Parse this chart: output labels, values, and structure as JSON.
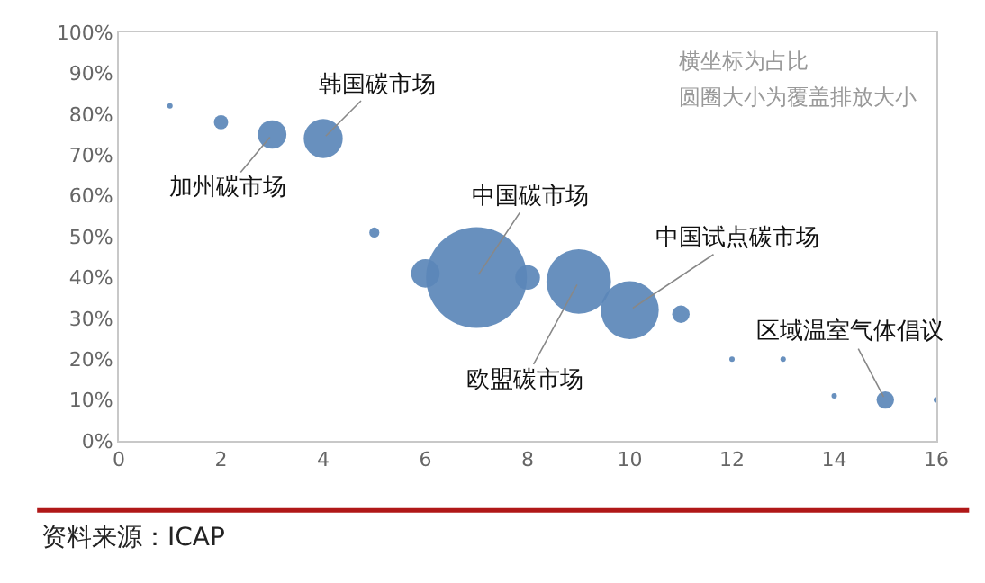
{
  "chart_data": {
    "type": "bubble",
    "x": [
      1,
      2,
      3,
      4,
      5,
      6,
      7,
      8,
      9,
      10,
      11,
      12,
      13,
      14,
      15,
      16
    ],
    "values": [
      82,
      78,
      75,
      74,
      51,
      41,
      40,
      40,
      39,
      32,
      31,
      20,
      20,
      11,
      10,
      10
    ],
    "sizes": [
      0.002,
      0.02,
      0.08,
      0.15,
      0.01,
      0.08,
      1,
      0.06,
      0.41,
      0.33,
      0.03,
      0.002,
      0.002,
      0.002,
      0.03,
      0.002
    ],
    "color": "#5b87b8",
    "xlim": [
      0,
      16
    ],
    "xticks": [
      0,
      2,
      4,
      6,
      8,
      10,
      12,
      14,
      16
    ],
    "ylim": [
      0,
      100
    ],
    "yticks": [
      {
        "value": 0,
        "label": "0%"
      },
      {
        "value": 10,
        "label": "10%"
      },
      {
        "value": 20,
        "label": "20%"
      },
      {
        "value": 30,
        "label": "30%"
      },
      {
        "value": 40,
        "label": "40%"
      },
      {
        "value": 50,
        "label": "50%"
      },
      {
        "value": 60,
        "label": "60%"
      },
      {
        "value": 70,
        "label": "70%"
      },
      {
        "value": 80,
        "label": "80%"
      },
      {
        "value": 90,
        "label": "90%"
      },
      {
        "value": 100,
        "label": "100%"
      }
    ],
    "annotations": [
      {
        "text": "韩国碳市场",
        "x": 4,
        "y": 74
      },
      {
        "text": "加州碳市场",
        "x": 3,
        "y": 75
      },
      {
        "text": "中国碳市场",
        "x": 7,
        "y": 40
      },
      {
        "text": "中国试点碳市场",
        "x": 10,
        "y": 32
      },
      {
        "text": "欧盟碳市场",
        "x": 9,
        "y": 39
      },
      {
        "text": "区域温室气体倡议",
        "x": 15,
        "y": 10
      },
      "横坐标为占比",
      "圆圈大小为覆盖排放大小",
      "资料来源：ICAP"
    ]
  }
}
